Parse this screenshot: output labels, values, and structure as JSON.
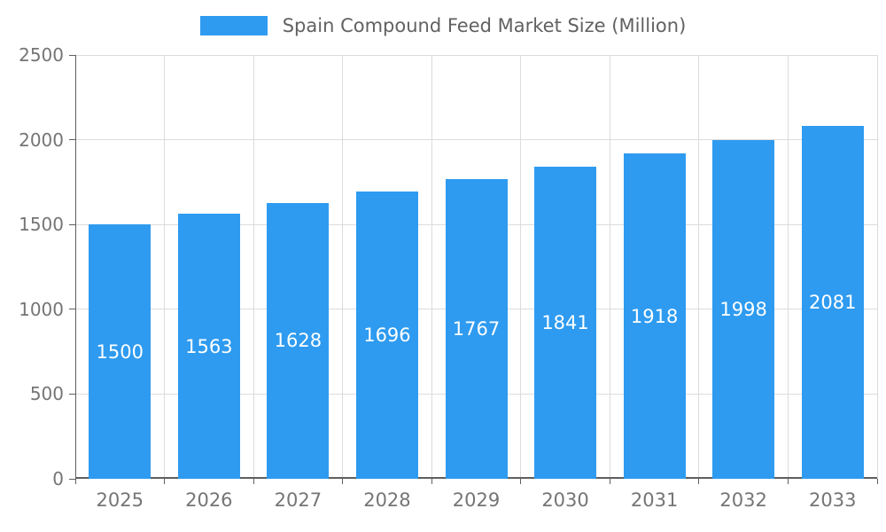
{
  "chart_data": {
    "type": "bar",
    "title": "Spain Compound Feed Market Size (Million)",
    "categories": [
      "2025",
      "2026",
      "2027",
      "2028",
      "2029",
      "2030",
      "2031",
      "2032",
      "2033"
    ],
    "values": [
      1500,
      1563,
      1628,
      1696,
      1767,
      1841,
      1918,
      1998,
      2081
    ],
    "xlabel": "",
    "ylabel": "",
    "ylim": [
      0,
      2500
    ],
    "yticks": [
      0,
      500,
      1000,
      1500,
      2000,
      2500
    ],
    "grid": true,
    "legend_position": "top-center",
    "value_label_position": "inside-center"
  },
  "colors": {
    "bar": "#2E9BF0",
    "value_label": "#FFFFFF",
    "grid_line": "#DCDCDC",
    "axis_line": "#5F5F5F",
    "tick_label": "#757575",
    "title_text": "#616161",
    "background": "#FFFFFF"
  }
}
